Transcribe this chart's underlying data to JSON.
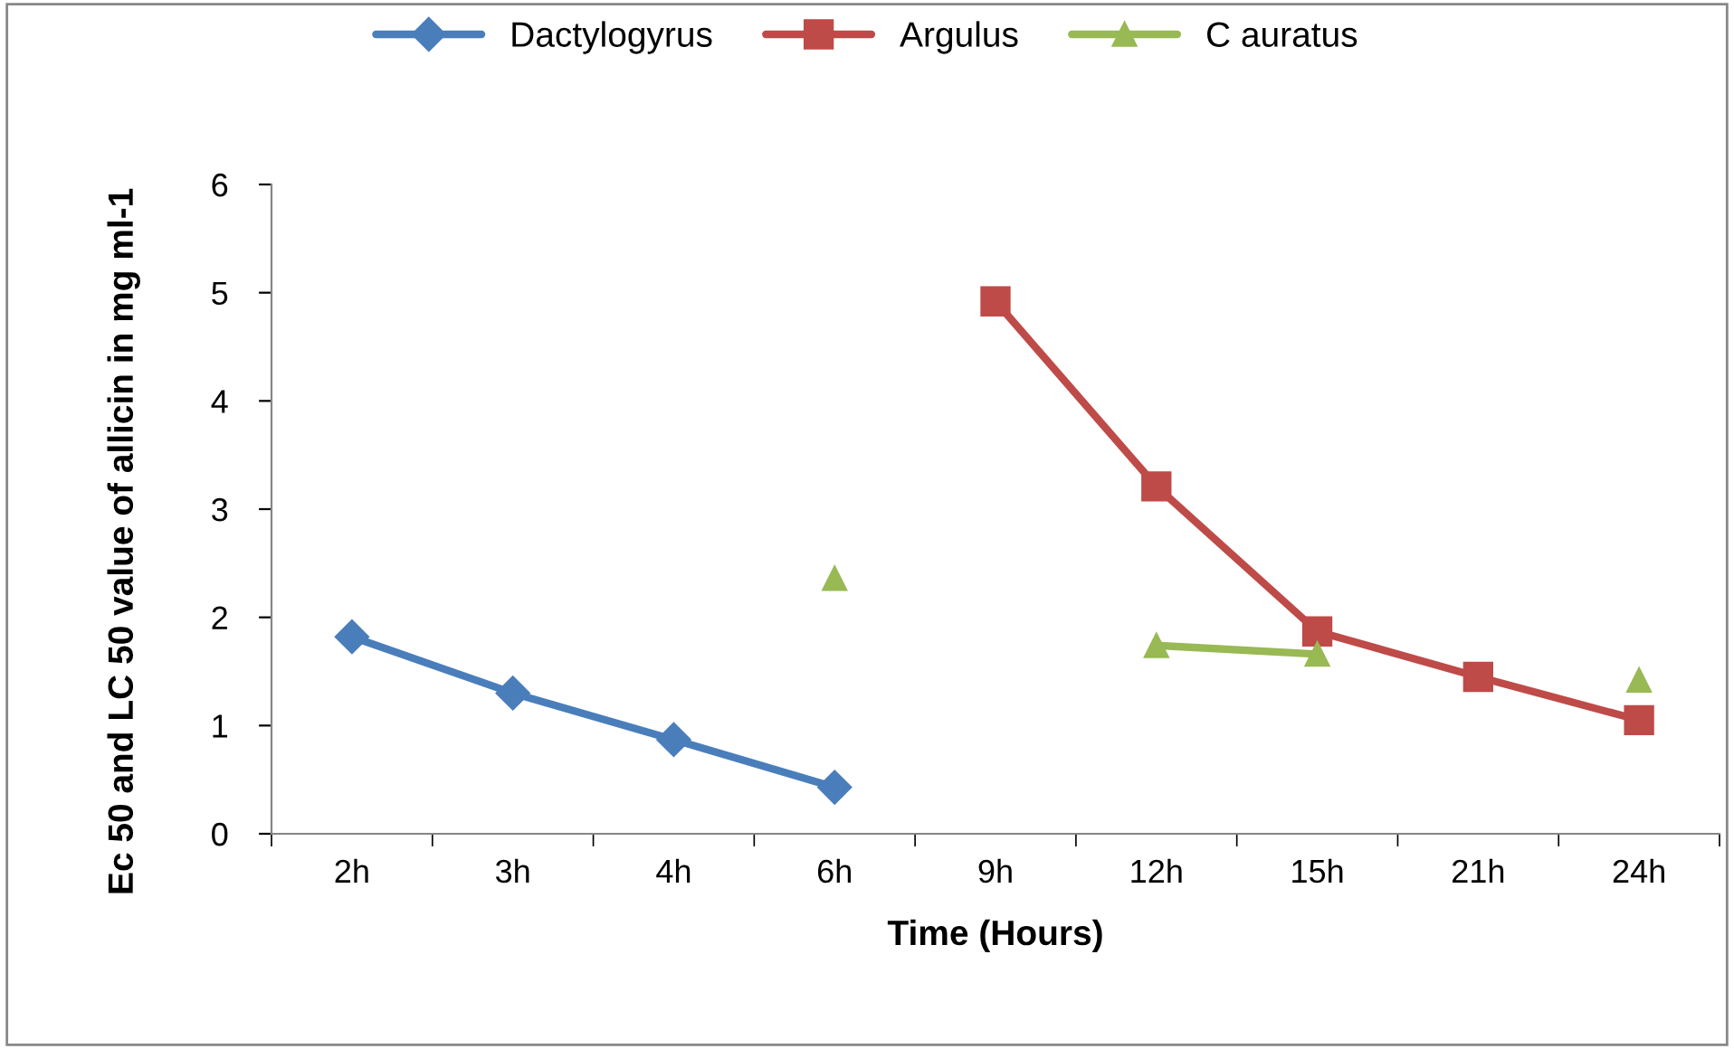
{
  "chart_data": {
    "type": "line",
    "xlabel": "Time (Hours)",
    "ylabel": "Ec 50 and LC 50 value of allicin in mg ml-1",
    "categories": [
      "2h",
      "3h",
      "4h",
      "6h",
      "9h",
      "12h",
      "15h",
      "21h",
      "24h"
    ],
    "series": [
      {
        "name": "Dactylogyrus",
        "color": "#4a7ebb",
        "marker": "diamond",
        "values": [
          1.82,
          1.3,
          0.87,
          0.43,
          null,
          null,
          null,
          null,
          null
        ]
      },
      {
        "name": "Argulus",
        "color": "#be4b48",
        "marker": "square",
        "values": [
          null,
          null,
          null,
          null,
          4.92,
          3.21,
          1.87,
          1.45,
          1.05
        ]
      },
      {
        "name": "C auratus",
        "color": "#98b954",
        "marker": "triangle",
        "values": [
          null,
          null,
          null,
          2.36,
          null,
          1.74,
          1.66,
          null,
          1.42
        ]
      }
    ],
    "ylim": [
      0,
      6
    ],
    "yticks": [
      0,
      1,
      2,
      3,
      4,
      5,
      6
    ],
    "grid": false,
    "legend": "top",
    "line_style": "solid"
  }
}
